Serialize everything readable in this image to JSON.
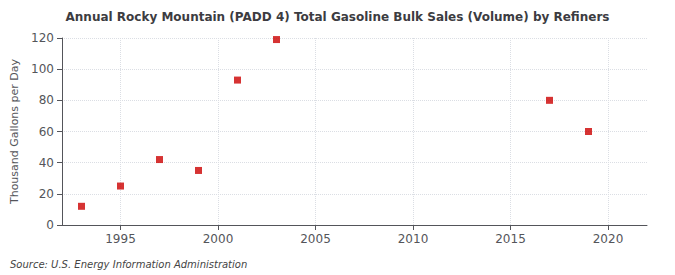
{
  "chart_data": {
    "type": "scatter",
    "title": "Annual Rocky Mountain (PADD 4) Total Gasoline Bulk Sales (Volume) by Refiners",
    "ylabel": "Thousand Gallons per Day",
    "annotation": "Source: U.S. Energy Information Administration",
    "x": [
      1993,
      1995,
      1997,
      1999,
      2001,
      2003,
      2017,
      2019
    ],
    "values": [
      12,
      25,
      42,
      35,
      93,
      119,
      80,
      60
    ],
    "color": "#cc0000",
    "marker": "square",
    "xlim": [
      1992,
      2022
    ],
    "xticks": [
      1995,
      2000,
      2005,
      2010,
      2015,
      2020
    ],
    "ylim": [
      0,
      120
    ],
    "yticks": [
      0,
      20,
      40,
      60,
      80,
      100,
      120
    ],
    "grid": true
  }
}
